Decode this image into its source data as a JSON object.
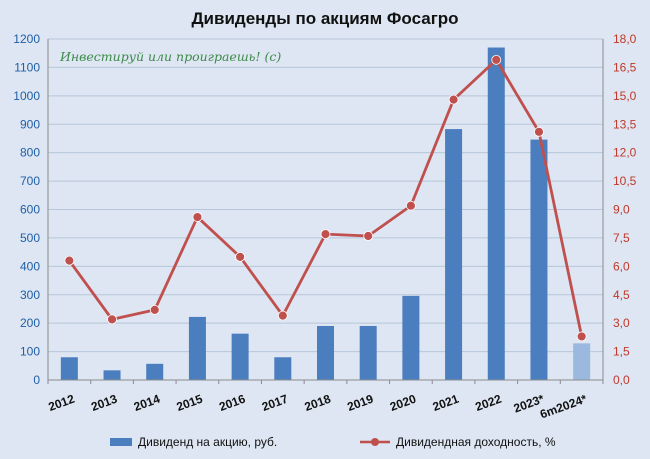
{
  "chart_data": {
    "type": "bar",
    "title": "Дивиденды по акциям Фосагро",
    "annotation": "Инвестируй или проиграешь! (с)",
    "categories": [
      "2012",
      "2013",
      "2014",
      "2015",
      "2016",
      "2017",
      "2018",
      "2019",
      "2020",
      "2021",
      "2022",
      "2023*",
      "6m2024*"
    ],
    "left_axis": {
      "ylim": [
        0,
        1200
      ],
      "ticks": [
        "0",
        "100",
        "200",
        "300",
        "400",
        "500",
        "600",
        "700",
        "800",
        "900",
        "1000",
        "1100",
        "1200"
      ]
    },
    "right_axis": {
      "ylim": [
        0,
        18
      ],
      "ticks": [
        "0,0",
        "1,5",
        "3,0",
        "4,5",
        "6,0",
        "7,5",
        "9,0",
        "10,5",
        "12,0",
        "13,5",
        "15,0",
        "16,5",
        "18,0"
      ]
    },
    "grid": true,
    "legend_position": "bottom",
    "series": [
      {
        "name": "Дивиденд на акцию, руб.",
        "type": "bar",
        "axis": "left",
        "color": "#4a7ebf",
        "highlight_last_color": "#9bb8de",
        "values": [
          80,
          34,
          57,
          222,
          163,
          80,
          190,
          190,
          296,
          883,
          1170,
          846,
          129
        ]
      },
      {
        "name": "Дивидендная доходность, %",
        "type": "line",
        "axis": "right",
        "color": "#c0504d",
        "values": [
          6.3,
          3.2,
          3.7,
          8.6,
          6.5,
          3.4,
          7.7,
          7.6,
          9.2,
          14.8,
          16.9,
          13.1,
          2.3
        ]
      }
    ]
  }
}
